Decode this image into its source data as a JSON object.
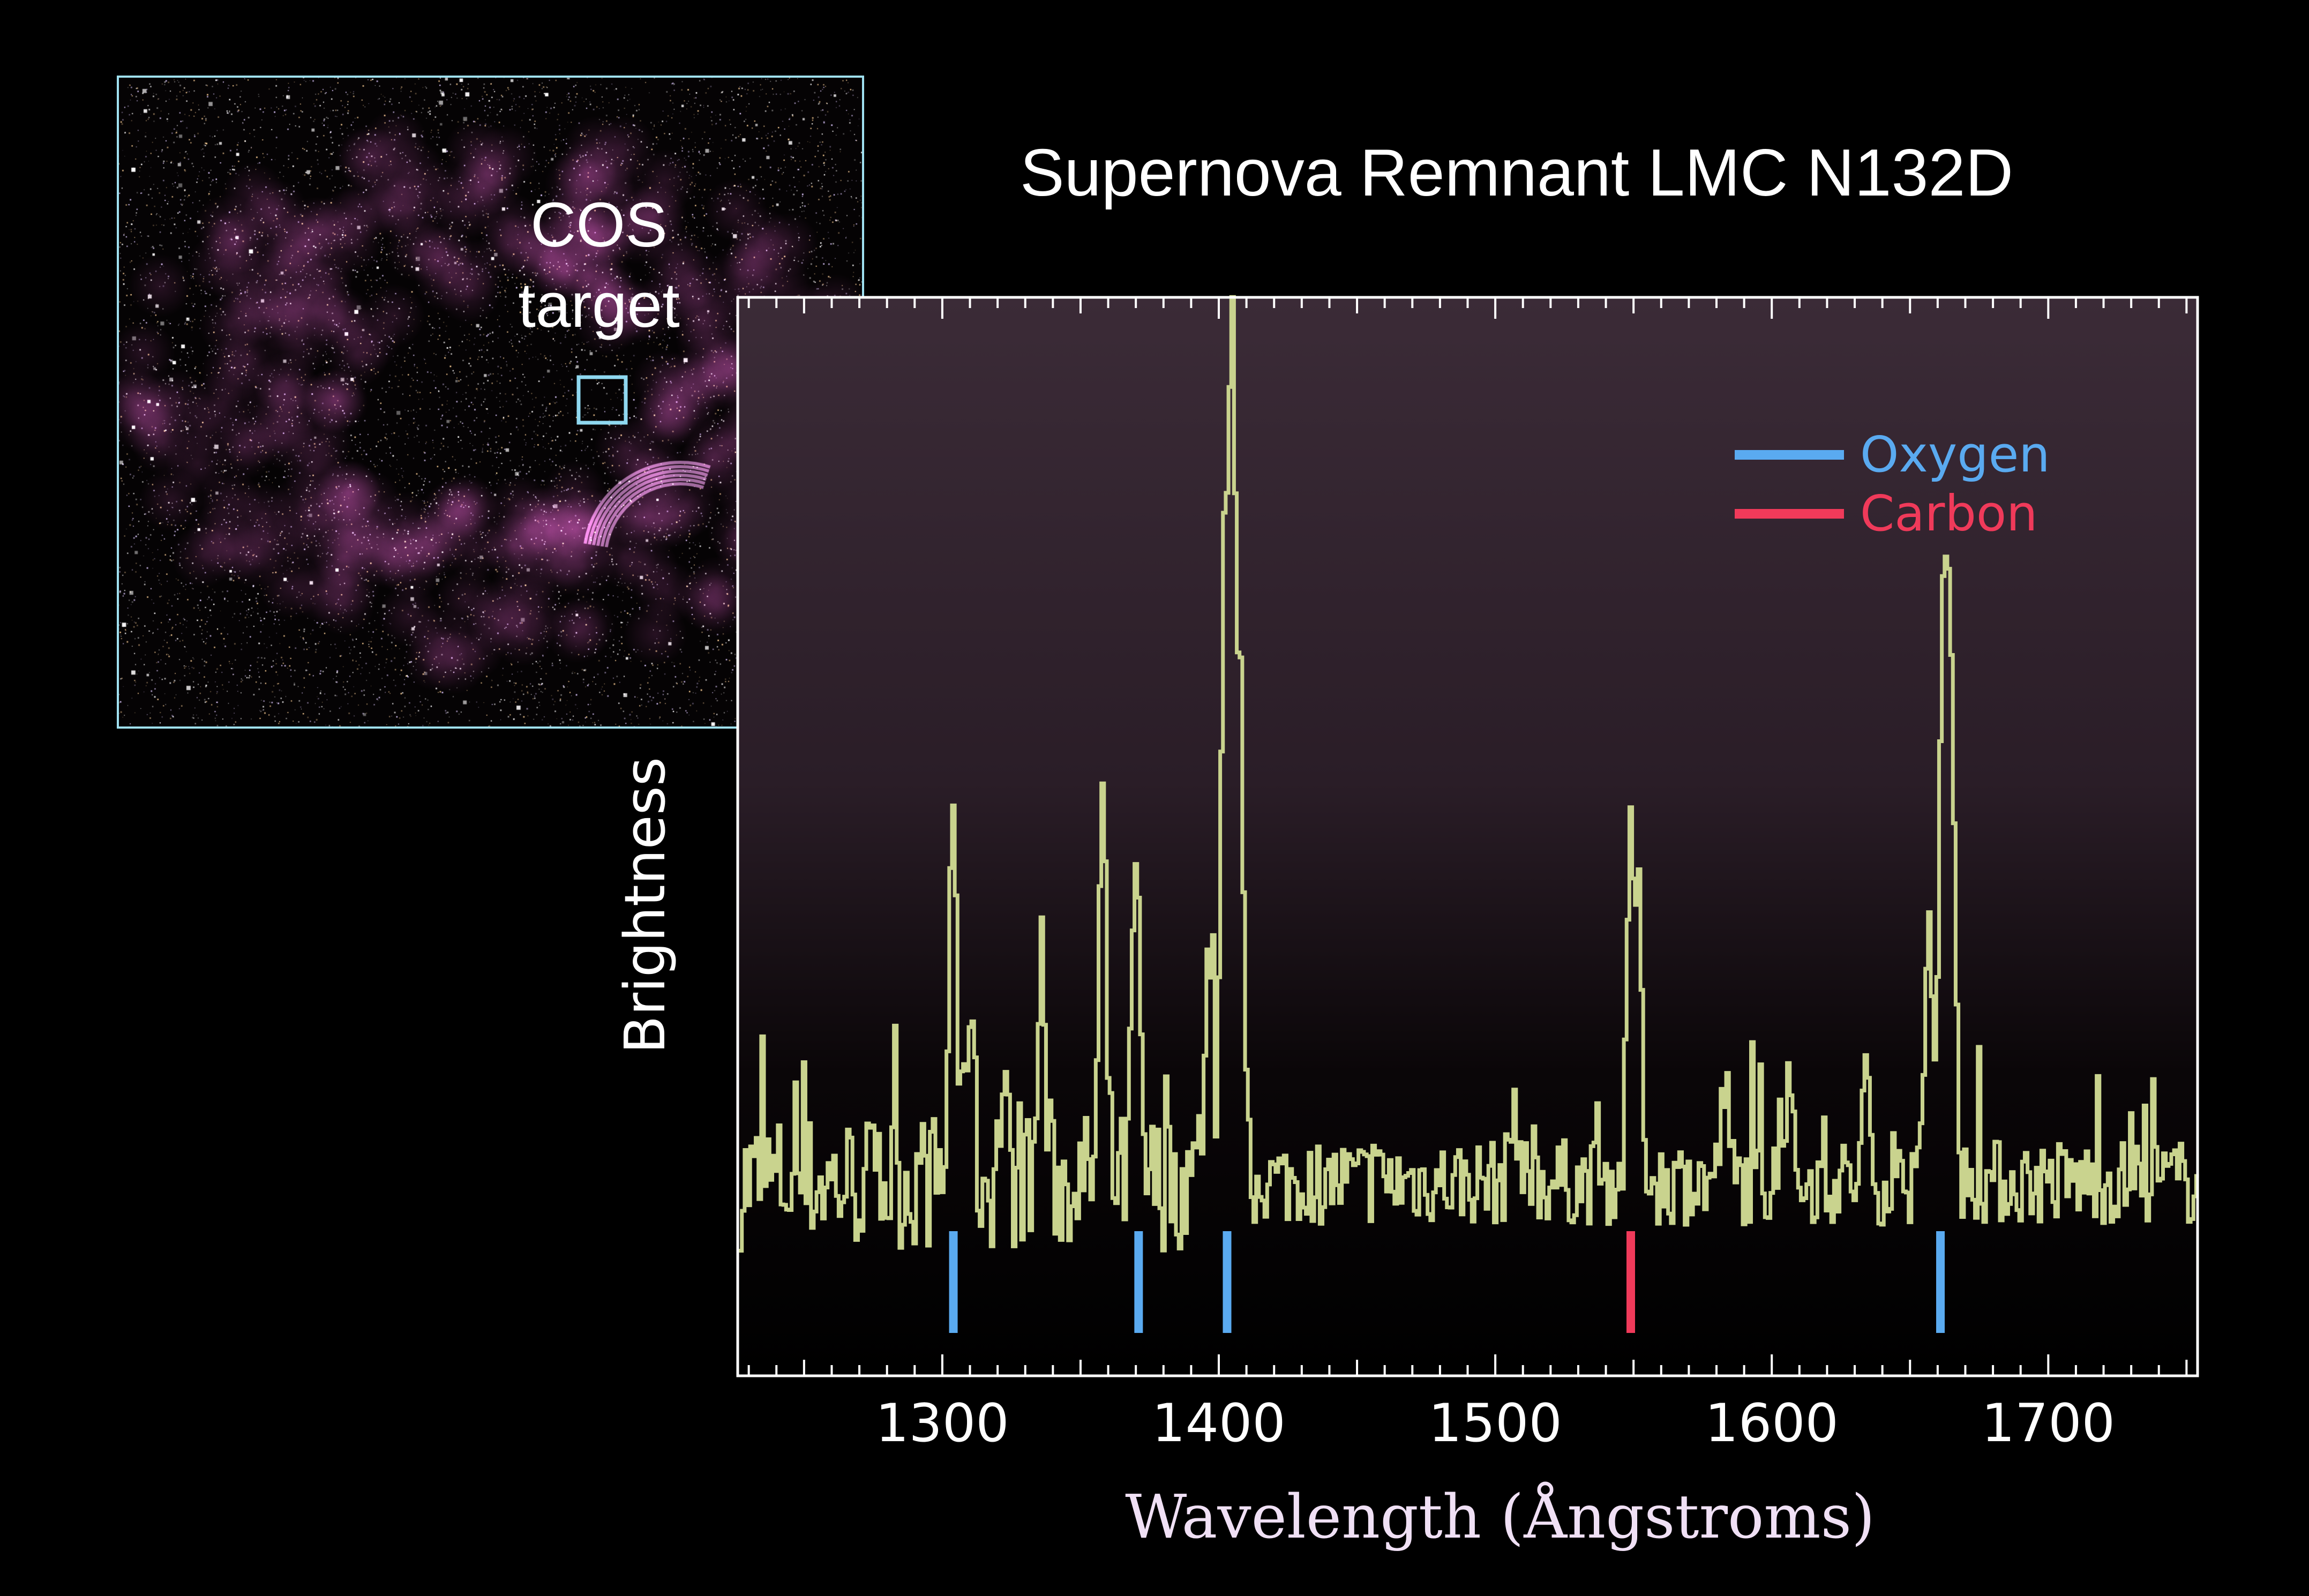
{
  "inset": {
    "label_line1": "COS",
    "label_line2": "target",
    "frame_color": "#9fe0f0"
  },
  "chart_data": {
    "type": "line",
    "title": "Supernova Remnant LMC N132D",
    "xlabel": "Wavelength (Ångstroms)",
    "ylabel": "Brightness",
    "xlim": [
      1226,
      1754
    ],
    "ylim": [
      0,
      100
    ],
    "x_ticks": [
      1300,
      1400,
      1500,
      1600,
      1700
    ],
    "x_tick_labels": [
      "1300",
      "1400",
      "1500",
      "1600",
      "1700"
    ],
    "grid": false,
    "legend": {
      "placement": "top-right",
      "entries": [
        {
          "label": "Oxygen",
          "color": "#5aaaf0"
        },
        {
          "label": "Carbon",
          "color": "#f03a5a"
        }
      ]
    },
    "spectrum": {
      "color": "#c9d38e",
      "baseline": 18,
      "noise_amplitude": 4,
      "peaks": [
        {
          "wavelength": 1304,
          "value": 55
        },
        {
          "wavelength": 1310,
          "value": 37
        },
        {
          "wavelength": 1322,
          "value": 27
        },
        {
          "wavelength": 1336,
          "value": 39
        },
        {
          "wavelength": 1358,
          "value": 52
        },
        {
          "wavelength": 1370,
          "value": 47
        },
        {
          "wavelength": 1396,
          "value": 38
        },
        {
          "wavelength": 1402,
          "value": 75
        },
        {
          "wavelength": 1405,
          "value": 90
        },
        {
          "wavelength": 1408,
          "value": 58
        },
        {
          "wavelength": 1507,
          "value": 26
        },
        {
          "wavelength": 1549,
          "value": 48
        },
        {
          "wavelength": 1552,
          "value": 41
        },
        {
          "wavelength": 1583,
          "value": 27
        },
        {
          "wavelength": 1606,
          "value": 27
        },
        {
          "wavelength": 1634,
          "value": 26
        },
        {
          "wavelength": 1657,
          "value": 42
        },
        {
          "wavelength": 1662,
          "value": 72
        },
        {
          "wavelength": 1665,
          "value": 67
        }
      ]
    },
    "line_markers": [
      {
        "element": "Oxygen",
        "wavelength": 1304
      },
      {
        "element": "Oxygen",
        "wavelength": 1371
      },
      {
        "element": "Oxygen",
        "wavelength": 1403
      },
      {
        "element": "Carbon",
        "wavelength": 1549
      },
      {
        "element": "Oxygen",
        "wavelength": 1661
      }
    ]
  }
}
